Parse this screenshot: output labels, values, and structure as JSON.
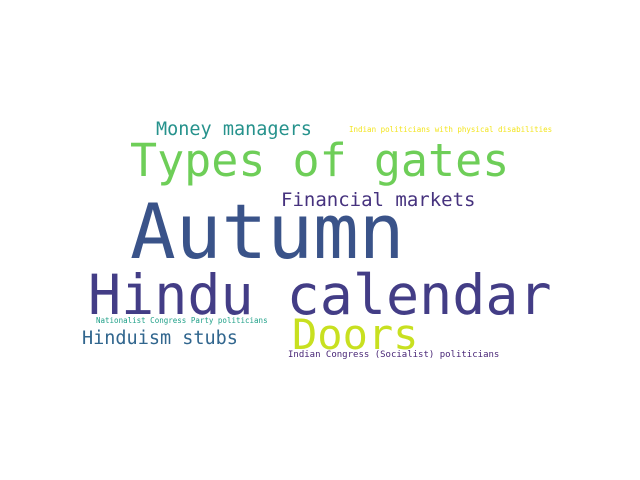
{
  "word_cloud": {
    "words": [
      {
        "key": "autumn",
        "text": "Autumn",
        "color": "#3a5389"
      },
      {
        "key": "hindu_calendar",
        "text": "Hindu calendar",
        "color": "#433d86"
      },
      {
        "key": "types_of_gates",
        "text": "Types of gates",
        "color": "#6ece58"
      },
      {
        "key": "doors",
        "text": "Doors",
        "color": "#c8e020"
      },
      {
        "key": "financial_markets",
        "text": "Financial markets",
        "color": "#46327e"
      },
      {
        "key": "money_managers",
        "text": "Money managers",
        "color": "#26928c"
      },
      {
        "key": "hinduism_stubs",
        "text": "Hinduism stubs",
        "color": "#31668e"
      },
      {
        "key": "indian_congress_socialist",
        "text": "Indian Congress (Socialist) politicians",
        "color": "#482576"
      },
      {
        "key": "ncp_politicians",
        "text": "Nationalist Congress Party politicians",
        "color": "#1fa088"
      },
      {
        "key": "disabilities",
        "text": "Indian politicians with physical disabilities",
        "color": "#f3e51e"
      }
    ]
  }
}
